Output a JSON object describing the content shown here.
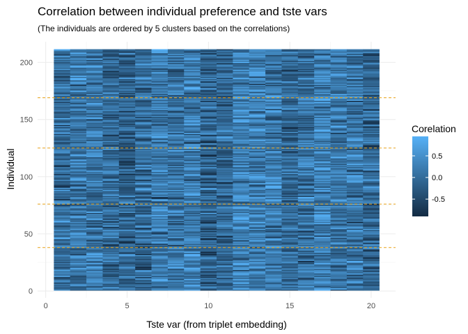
{
  "chart_data": {
    "type": "heatmap",
    "title": "Correlation between individual preference and tste vars",
    "subtitle": "(The individuals are ordered by 5 clusters based on the correlations)",
    "xlabel": "Tste var (from triplet embedding)",
    "ylabel": "Individual",
    "x_columns": [
      1,
      2,
      3,
      4,
      5,
      6,
      7,
      8,
      9,
      10,
      11,
      12,
      13,
      14,
      15,
      16,
      17,
      18,
      19,
      20
    ],
    "n_individuals": 211,
    "xlim": [
      -0.5,
      21.5
    ],
    "ylim": [
      -6,
      218
    ],
    "x_ticks": [
      0,
      5,
      10,
      15,
      20
    ],
    "y_ticks": [
      0,
      50,
      100,
      150,
      200
    ],
    "cluster_boundaries": [
      38,
      76,
      125,
      169
    ],
    "cluster_line_color": "#e8a219",
    "legend": {
      "title": "Corelation",
      "placement": "right",
      "ticks": [
        0.5,
        0.0,
        -0.5
      ],
      "tick_labels": [
        "0.5",
        "0.0",
        "-0.5"
      ],
      "range": [
        -0.9,
        0.95
      ],
      "low_color": "#132b43",
      "high_color": "#56b1f7"
    },
    "grid": true
  }
}
